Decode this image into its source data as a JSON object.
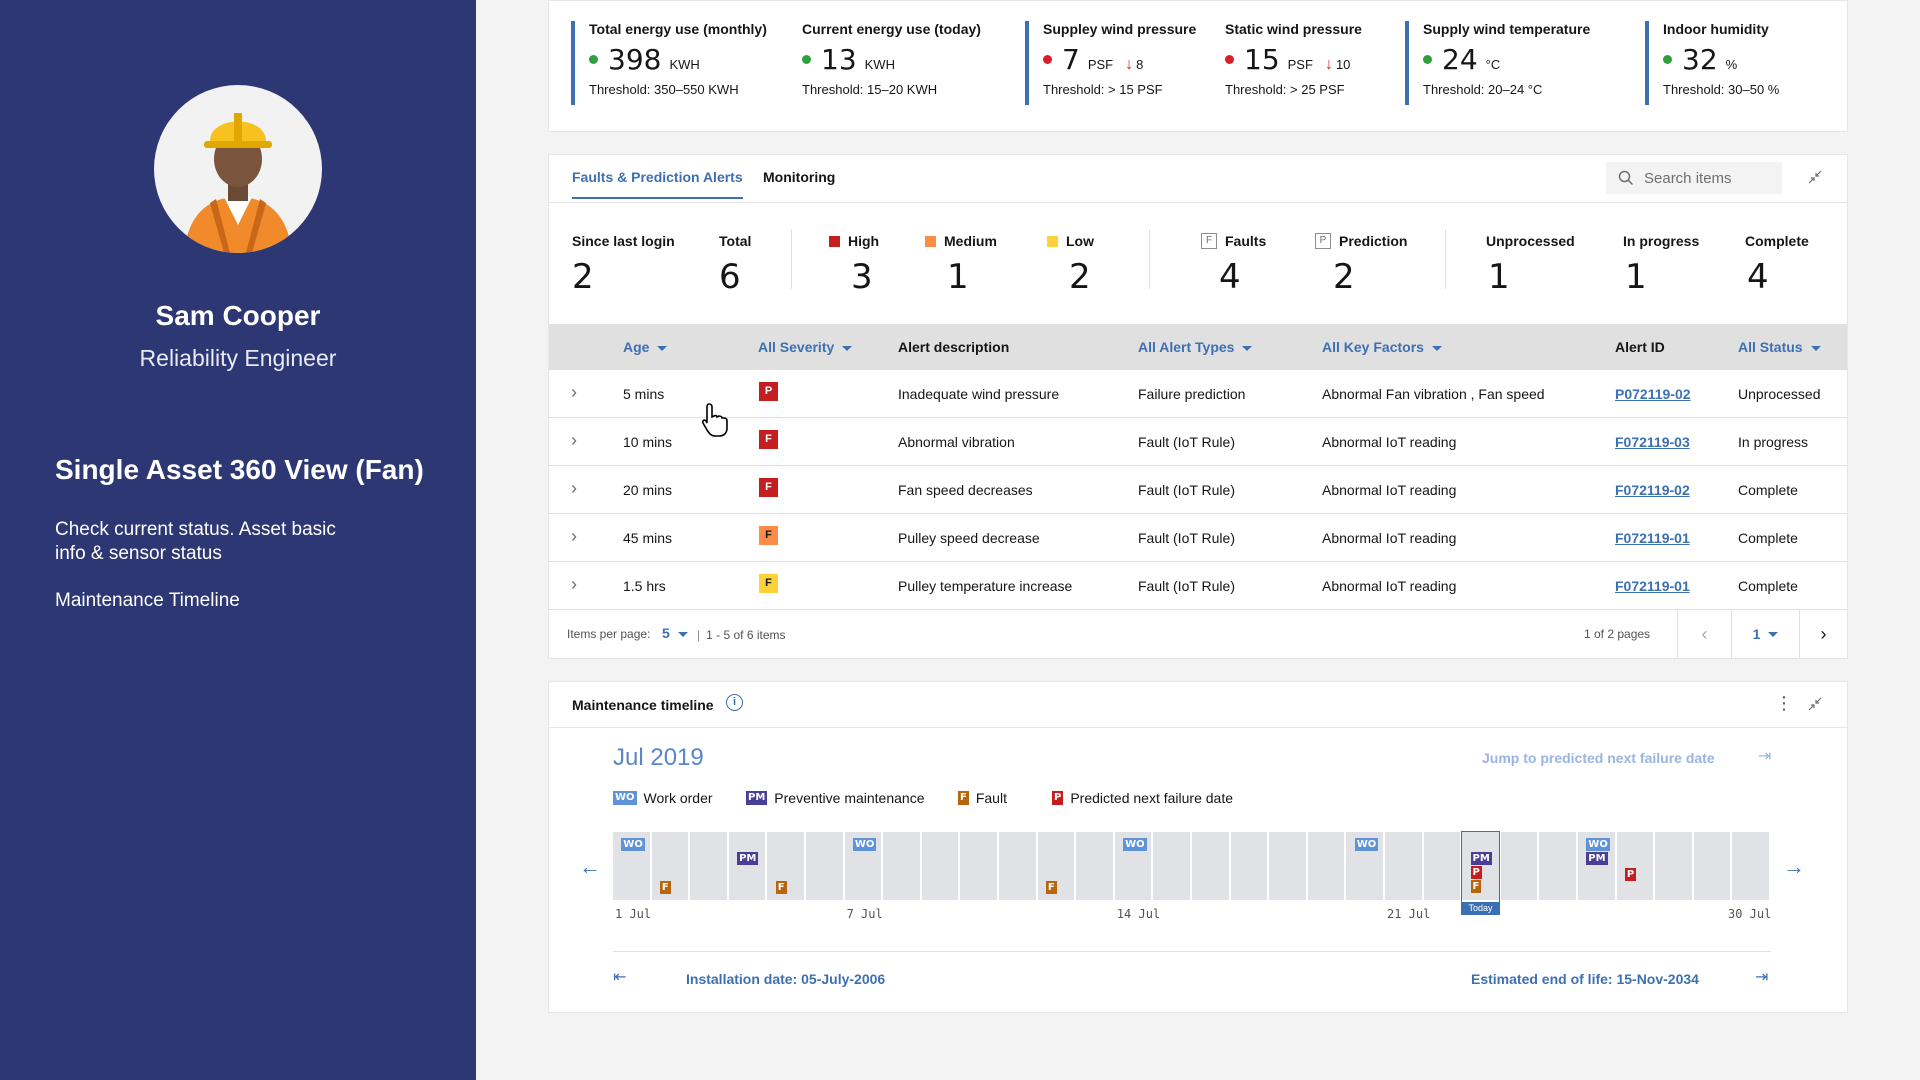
{
  "profile": {
    "name": "Sam Cooper",
    "role": "Reliability Engineer",
    "view_title": "Single Asset 360 View (Fan)",
    "description": "Check current status. Asset basic info & sensor status",
    "timeline_note": "Maintenance Timeline"
  },
  "kpis": [
    {
      "label": "Total energy use (monthly)",
      "value": "398",
      "unit": "KWH",
      "status": "green",
      "delta": "",
      "threshold": "Threshold: 350–550 KWH"
    },
    {
      "label": "Current energy use (today)",
      "value": "13",
      "unit": "KWH",
      "status": "green",
      "delta": "",
      "threshold": "Threshold: 15–20 KWH"
    },
    {
      "label": "Suppley wind pressure",
      "value": "7",
      "unit": "PSF",
      "status": "red",
      "delta": "8",
      "threshold": "Threshold: > 15 PSF"
    },
    {
      "label": "Static wind pressure",
      "value": "15",
      "unit": "PSF",
      "status": "red",
      "delta": "10",
      "threshold": "Threshold: > 25 PSF"
    },
    {
      "label": "Supply wind temperature",
      "value": "24",
      "unit": "°C",
      "status": "green",
      "delta": "",
      "threshold": "Threshold: 20–24 °C"
    },
    {
      "label": "Indoor humidity",
      "value": "32",
      "unit": "%",
      "status": "green",
      "delta": "",
      "threshold": "Threshold: 30–50 %"
    }
  ],
  "alerts": {
    "tabs": [
      "Faults & Prediction Alerts",
      "Monitoring"
    ],
    "search_placeholder": "Search items",
    "summary": {
      "since_last_login": {
        "label": "Since last login",
        "value": "2"
      },
      "total": {
        "label": "Total",
        "value": "6"
      },
      "high": {
        "label": "High",
        "value": "3"
      },
      "medium": {
        "label": "Medium",
        "value": "1"
      },
      "low": {
        "label": "Low",
        "value": "2"
      },
      "faults": {
        "label": "Faults",
        "value": "4",
        "icon": "F"
      },
      "prediction": {
        "label": "Prediction",
        "value": "2",
        "icon": "P"
      },
      "unprocessed": {
        "label": "Unprocessed",
        "value": "1"
      },
      "in_progress": {
        "label": "In progress",
        "value": "1"
      },
      "complete": {
        "label": "Complete",
        "value": "4"
      }
    },
    "colors": {
      "high": "#c51e1e",
      "medium": "#fd8c47",
      "low": "#fdd13a",
      "accent": "#3d70b2"
    },
    "columns": {
      "age": "Age",
      "severity": "All Severity",
      "description": "Alert description",
      "type": "All Alert Types",
      "key_factors": "All Key Factors",
      "alert_id": "Alert ID",
      "status": "All Status"
    },
    "rows": [
      {
        "age": "5 mins",
        "severity": "high",
        "sev_letter": "P",
        "description": "Inadequate wind pressure",
        "type": "Failure prediction",
        "key_factors": "Abnormal Fan vibration , Fan speed",
        "alert_id": "P072119-02",
        "status": "Unprocessed"
      },
      {
        "age": "10 mins",
        "severity": "high",
        "sev_letter": "F",
        "description": "Abnormal vibration",
        "type": "Fault (IoT Rule)",
        "key_factors": "Abnormal IoT reading",
        "alert_id": "F072119-03",
        "status": "In progress"
      },
      {
        "age": "20 mins",
        "severity": "high",
        "sev_letter": "F",
        "description": "Fan speed decreases",
        "type": "Fault (IoT Rule)",
        "key_factors": "Abnormal IoT reading",
        "alert_id": "F072119-02",
        "status": "Complete"
      },
      {
        "age": "45 mins",
        "severity": "medium",
        "sev_letter": "F",
        "description": "Pulley speed decrease",
        "type": "Fault (IoT Rule)",
        "key_factors": "Abnormal IoT reading",
        "alert_id": "F072119-01",
        "status": "Complete"
      },
      {
        "age": "1.5 hrs",
        "severity": "low",
        "sev_letter": "F",
        "description": "Pulley temperature increase",
        "type": "Fault (IoT Rule)",
        "key_factors": "Abnormal IoT reading",
        "alert_id": "F072119-01",
        "status": "Complete"
      }
    ],
    "footer": {
      "items_per_page_label": "Items per page:",
      "items_per_page": "5",
      "range": "1 - 5 of 6 items",
      "pages": "1 of 2 pages",
      "current_page": "1"
    }
  },
  "timeline": {
    "title": "Maintenance timeline",
    "month": "Jul 2019",
    "jump_label": "Jump to predicted next failure date",
    "legend": [
      {
        "tag": "WO",
        "label": "Work order",
        "kind": "wo"
      },
      {
        "tag": "PM",
        "label": "Preventive maintenance",
        "kind": "pm"
      },
      {
        "tag": "F",
        "label": "Fault",
        "kind": "f"
      },
      {
        "tag": "P",
        "label": "Predicted next failure date",
        "kind": "p"
      }
    ],
    "days": 30,
    "today_day": 23,
    "today_label": "Today",
    "events": [
      {
        "day": 1,
        "tags": [
          "WO"
        ]
      },
      {
        "day": 2,
        "tags": [
          "F"
        ]
      },
      {
        "day": 4,
        "tags": [
          "PM"
        ]
      },
      {
        "day": 5,
        "tags": [
          "F"
        ]
      },
      {
        "day": 7,
        "tags": [
          "WO"
        ]
      },
      {
        "day": 12,
        "tags": [
          "F"
        ]
      },
      {
        "day": 14,
        "tags": [
          "WO"
        ]
      },
      {
        "day": 20,
        "tags": [
          "WO"
        ]
      },
      {
        "day": 23,
        "tags": [
          "PM",
          "P",
          "F"
        ]
      },
      {
        "day": 26,
        "tags": [
          "WO",
          "PM"
        ]
      },
      {
        "day": 27,
        "tags": [
          "P"
        ]
      }
    ],
    "date_labels": [
      {
        "day": 1,
        "text": "1 Jul"
      },
      {
        "day": 7,
        "text": "7 Jul"
      },
      {
        "day": 14,
        "text": "14 Jul"
      },
      {
        "day": 21,
        "text": "21 Jul"
      },
      {
        "day": 30,
        "text": "30 Jul"
      }
    ],
    "installation_date": "Installation date: 05-July-2006",
    "end_of_life": "Estimated end of life: 15-Nov-2034"
  }
}
